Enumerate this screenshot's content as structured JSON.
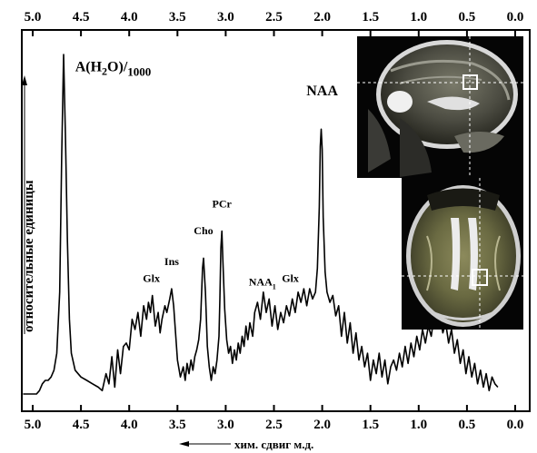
{
  "chart_data": {
    "type": "line",
    "xlabel": "хим. сдвиг м.д.",
    "ylabel": "относительные единицы",
    "x_reversed": true,
    "xlim": [
      5.2,
      -0.2
    ],
    "ylim": [
      0,
      100
    ],
    "ticks": [
      "5.0",
      "4.5",
      "4.0",
      "3.5",
      "3.0",
      "2.5",
      "2.0",
      "1.5",
      "1.0",
      "0.5",
      "0.0"
    ],
    "tick_values": [
      5.0,
      4.5,
      4.0,
      3.5,
      3.0,
      2.5,
      2.0,
      1.5,
      1.0,
      0.5,
      0.0
    ],
    "series": [
      {
        "points": [
          [
            5.1,
            0
          ],
          [
            4.96,
            0
          ],
          [
            4.93,
            1
          ],
          [
            4.9,
            3
          ],
          [
            4.87,
            4
          ],
          [
            4.84,
            4
          ],
          [
            4.81,
            5
          ],
          [
            4.78,
            7
          ],
          [
            4.75,
            12
          ],
          [
            4.72,
            30
          ],
          [
            4.7,
            70
          ],
          [
            4.68,
            100
          ],
          [
            4.66,
            75
          ],
          [
            4.64,
            45
          ],
          [
            4.62,
            22
          ],
          [
            4.6,
            12
          ],
          [
            4.56,
            7
          ],
          [
            4.5,
            5
          ],
          [
            4.44,
            4
          ],
          [
            4.38,
            3
          ],
          [
            4.32,
            2
          ],
          [
            4.28,
            1
          ],
          [
            4.24,
            6
          ],
          [
            4.21,
            3
          ],
          [
            4.18,
            11
          ],
          [
            4.15,
            2
          ],
          [
            4.12,
            13
          ],
          [
            4.09,
            6
          ],
          [
            4.06,
            14
          ],
          [
            4.03,
            15
          ],
          [
            4.0,
            13
          ],
          [
            3.97,
            22
          ],
          [
            3.94,
            19
          ],
          [
            3.91,
            24
          ],
          [
            3.88,
            17
          ],
          [
            3.85,
            26
          ],
          [
            3.82,
            22
          ],
          [
            3.8,
            27
          ],
          [
            3.78,
            24
          ],
          [
            3.76,
            29
          ],
          [
            3.73,
            20
          ],
          [
            3.7,
            24
          ],
          [
            3.68,
            18
          ],
          [
            3.66,
            22
          ],
          [
            3.63,
            26
          ],
          [
            3.61,
            24
          ],
          [
            3.58,
            28
          ],
          [
            3.56,
            31
          ],
          [
            3.54,
            26
          ],
          [
            3.52,
            18
          ],
          [
            3.5,
            10
          ],
          [
            3.47,
            5
          ],
          [
            3.44,
            8
          ],
          [
            3.42,
            4
          ],
          [
            3.4,
            9
          ],
          [
            3.38,
            6
          ],
          [
            3.36,
            10
          ],
          [
            3.34,
            7
          ],
          [
            3.32,
            11
          ],
          [
            3.3,
            13
          ],
          [
            3.28,
            16
          ],
          [
            3.26,
            22
          ],
          [
            3.24,
            37
          ],
          [
            3.23,
            40
          ],
          [
            3.21,
            30
          ],
          [
            3.19,
            14
          ],
          [
            3.17,
            8
          ],
          [
            3.15,
            4
          ],
          [
            3.13,
            8
          ],
          [
            3.11,
            6
          ],
          [
            3.09,
            10
          ],
          [
            3.07,
            17
          ],
          [
            3.06,
            28
          ],
          [
            3.05,
            43
          ],
          [
            3.04,
            48
          ],
          [
            3.03,
            40
          ],
          [
            3.01,
            25
          ],
          [
            2.99,
            16
          ],
          [
            2.97,
            12
          ],
          [
            2.95,
            14
          ],
          [
            2.93,
            9
          ],
          [
            2.91,
            13
          ],
          [
            2.89,
            10
          ],
          [
            2.87,
            15
          ],
          [
            2.85,
            12
          ],
          [
            2.83,
            17
          ],
          [
            2.81,
            14
          ],
          [
            2.79,
            20
          ],
          [
            2.77,
            16
          ],
          [
            2.75,
            21
          ],
          [
            2.72,
            17
          ],
          [
            2.7,
            24
          ],
          [
            2.67,
            27
          ],
          [
            2.64,
            22
          ],
          [
            2.61,
            30
          ],
          [
            2.58,
            24
          ],
          [
            2.55,
            28
          ],
          [
            2.52,
            20
          ],
          [
            2.49,
            26
          ],
          [
            2.46,
            19
          ],
          [
            2.43,
            24
          ],
          [
            2.4,
            21
          ],
          [
            2.37,
            26
          ],
          [
            2.34,
            23
          ],
          [
            2.31,
            28
          ],
          [
            2.28,
            24
          ],
          [
            2.25,
            30
          ],
          [
            2.22,
            27
          ],
          [
            2.19,
            31
          ],
          [
            2.16,
            26
          ],
          [
            2.13,
            31
          ],
          [
            2.1,
            28
          ],
          [
            2.07,
            30
          ],
          [
            2.05,
            37
          ],
          [
            2.03,
            55
          ],
          [
            2.02,
            73
          ],
          [
            2.01,
            78
          ],
          [
            2.0,
            72
          ],
          [
            1.99,
            52
          ],
          [
            1.97,
            36
          ],
          [
            1.95,
            30
          ],
          [
            1.92,
            27
          ],
          [
            1.89,
            29
          ],
          [
            1.86,
            23
          ],
          [
            1.83,
            26
          ],
          [
            1.8,
            17
          ],
          [
            1.77,
            24
          ],
          [
            1.74,
            15
          ],
          [
            1.71,
            21
          ],
          [
            1.68,
            12
          ],
          [
            1.65,
            18
          ],
          [
            1.62,
            10
          ],
          [
            1.59,
            14
          ],
          [
            1.56,
            8
          ],
          [
            1.53,
            12
          ],
          [
            1.5,
            4
          ],
          [
            1.47,
            10
          ],
          [
            1.44,
            6
          ],
          [
            1.41,
            12
          ],
          [
            1.38,
            5
          ],
          [
            1.35,
            10
          ],
          [
            1.32,
            3
          ],
          [
            1.29,
            8
          ],
          [
            1.26,
            10
          ],
          [
            1.23,
            7
          ],
          [
            1.2,
            12
          ],
          [
            1.17,
            8
          ],
          [
            1.14,
            14
          ],
          [
            1.11,
            9
          ],
          [
            1.08,
            15
          ],
          [
            1.05,
            11
          ],
          [
            1.02,
            17
          ],
          [
            0.99,
            13
          ],
          [
            0.96,
            19
          ],
          [
            0.93,
            15
          ],
          [
            0.9,
            20
          ],
          [
            0.87,
            17
          ],
          [
            0.84,
            23
          ],
          [
            0.81,
            21
          ],
          [
            0.78,
            23
          ],
          [
            0.75,
            18
          ],
          [
            0.72,
            21
          ],
          [
            0.69,
            15
          ],
          [
            0.66,
            19
          ],
          [
            0.63,
            12
          ],
          [
            0.6,
            16
          ],
          [
            0.57,
            9
          ],
          [
            0.54,
            13
          ],
          [
            0.51,
            6
          ],
          [
            0.48,
            11
          ],
          [
            0.45,
            5
          ],
          [
            0.42,
            9
          ],
          [
            0.39,
            3
          ],
          [
            0.36,
            7
          ],
          [
            0.33,
            2
          ],
          [
            0.3,
            6
          ],
          [
            0.27,
            1
          ],
          [
            0.24,
            5
          ],
          [
            0.21,
            3
          ],
          [
            0.18,
            2
          ]
        ]
      }
    ],
    "annotations": [
      {
        "x": 4.56,
        "y": 95,
        "text": "A(H",
        "sub": "2",
        "text2": "O)/",
        "sub2": "1000"
      },
      {
        "x": 2.0,
        "y": 88,
        "text": "NAA",
        "sub": ""
      },
      {
        "x": 3.04,
        "y": 55,
        "text": "PCr",
        "sub": ""
      },
      {
        "x": 3.23,
        "y": 47,
        "text": "Cho",
        "sub": ""
      },
      {
        "x": 3.56,
        "y": 38,
        "text": "Ins",
        "sub": ""
      },
      {
        "x": 3.77,
        "y": 33,
        "text": "Glx",
        "sub": ""
      },
      {
        "x": 2.62,
        "y": 32,
        "text": "NAA",
        "sub": "1"
      },
      {
        "x": 2.33,
        "y": 33,
        "text": "Glx",
        "sub": ""
      }
    ]
  }
}
